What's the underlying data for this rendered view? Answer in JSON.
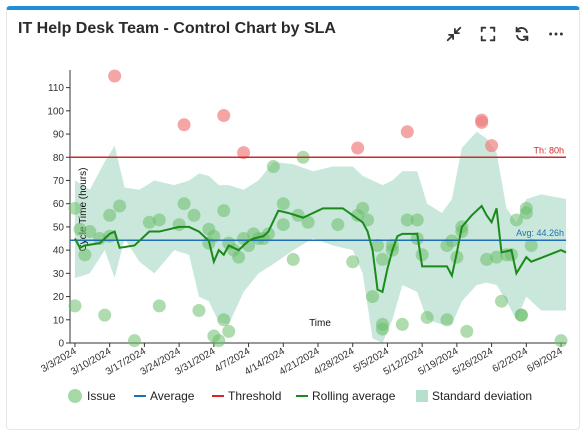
{
  "header": {
    "title": "IT Help Desk Team - Control Chart by SLA",
    "icons": [
      "collapse-icon",
      "fullscreen-icon",
      "refresh-icon",
      "more-icon"
    ]
  },
  "colors": {
    "accent": "#1f8fd6",
    "issue": "#6cbf6c",
    "issue_high": "#f08080",
    "average": "#1f6fb5",
    "threshold": "#d62728",
    "rolling": "#1a8a1a",
    "band": "#b7dfce"
  },
  "chart_data": {
    "type": "scatter",
    "xlabel": "Time",
    "ylabel": "Cycle Time (hours)",
    "ylim": [
      0,
      115
    ],
    "yticks": [
      0,
      10,
      20,
      30,
      40,
      50,
      60,
      70,
      80,
      90,
      100,
      110
    ],
    "xlim": [
      "2024-03-02",
      "2024-06-10"
    ],
    "xticks": [
      "3/3/2024",
      "3/10/2024",
      "3/17/2024",
      "3/24/2024",
      "3/31/2024",
      "4/7/2024",
      "4/14/2024",
      "4/21/2024",
      "4/28/2024",
      "5/5/2024",
      "5/12/2024",
      "5/19/2024",
      "5/26/2024",
      "6/2/2024",
      "6/9/2024"
    ],
    "average": {
      "label": "Avg: 44.26h",
      "value": 44.26
    },
    "threshold": {
      "label": "Th: 80h",
      "value": 80
    },
    "issues": [
      [
        "2024-03-03",
        16
      ],
      [
        "2024-03-03",
        58
      ],
      [
        "2024-03-04",
        49
      ],
      [
        "2024-03-05",
        38
      ],
      [
        "2024-03-06",
        48
      ],
      [
        "2024-03-08",
        45
      ],
      [
        "2024-03-09",
        12
      ],
      [
        "2024-03-10",
        46
      ],
      [
        "2024-03-10",
        55
      ],
      [
        "2024-03-11",
        115
      ],
      [
        "2024-03-12",
        59
      ],
      [
        "2024-03-15",
        1
      ],
      [
        "2024-03-18",
        52
      ],
      [
        "2024-03-20",
        16
      ],
      [
        "2024-03-20",
        53
      ],
      [
        "2024-03-24",
        51
      ],
      [
        "2024-03-25",
        94
      ],
      [
        "2024-03-25",
        60
      ],
      [
        "2024-03-27",
        55
      ],
      [
        "2024-03-28",
        14
      ],
      [
        "2024-03-30",
        49
      ],
      [
        "2024-03-30",
        43
      ],
      [
        "2024-03-31",
        3
      ],
      [
        "2024-03-31",
        46
      ],
      [
        "2024-04-01",
        1
      ],
      [
        "2024-04-02",
        98
      ],
      [
        "2024-04-02",
        57
      ],
      [
        "2024-04-02",
        10
      ],
      [
        "2024-04-03",
        5
      ],
      [
        "2024-04-03",
        43
      ],
      [
        "2024-04-04",
        40
      ],
      [
        "2024-04-05",
        37
      ],
      [
        "2024-04-06",
        82
      ],
      [
        "2024-04-06",
        45
      ],
      [
        "2024-04-07",
        42
      ],
      [
        "2024-04-08",
        47
      ],
      [
        "2024-04-09",
        45
      ],
      [
        "2024-04-10",
        45
      ],
      [
        "2024-04-11",
        47
      ],
      [
        "2024-04-12",
        76
      ],
      [
        "2024-04-14",
        60
      ],
      [
        "2024-04-14",
        51
      ],
      [
        "2024-04-16",
        36
      ],
      [
        "2024-04-17",
        55
      ],
      [
        "2024-04-18",
        80
      ],
      [
        "2024-04-19",
        52
      ],
      [
        "2024-04-25",
        51
      ],
      [
        "2024-04-28",
        35
      ],
      [
        "2024-04-29",
        84
      ],
      [
        "2024-04-29",
        55
      ],
      [
        "2024-04-30",
        58
      ],
      [
        "2024-05-01",
        53
      ],
      [
        "2024-05-02",
        20
      ],
      [
        "2024-05-03",
        42
      ],
      [
        "2024-05-04",
        8
      ],
      [
        "2024-05-04",
        6
      ],
      [
        "2024-05-04",
        36
      ],
      [
        "2024-05-06",
        42
      ],
      [
        "2024-05-06",
        40
      ],
      [
        "2024-05-08",
        8
      ],
      [
        "2024-05-09",
        91
      ],
      [
        "2024-05-09",
        53
      ],
      [
        "2024-05-11",
        45
      ],
      [
        "2024-05-11",
        53
      ],
      [
        "2024-05-12",
        38
      ],
      [
        "2024-05-13",
        11
      ],
      [
        "2024-05-17",
        42
      ],
      [
        "2024-05-17",
        10
      ],
      [
        "2024-05-18",
        44
      ],
      [
        "2024-05-19",
        37
      ],
      [
        "2024-05-20",
        48
      ],
      [
        "2024-05-20",
        50
      ],
      [
        "2024-05-21",
        5
      ],
      [
        "2024-05-24",
        96
      ],
      [
        "2024-05-24",
        95
      ],
      [
        "2024-05-25",
        36
      ],
      [
        "2024-05-26",
        85
      ],
      [
        "2024-05-27",
        37
      ],
      [
        "2024-05-28",
        18
      ],
      [
        "2024-05-29",
        38
      ],
      [
        "2024-05-30",
        38
      ],
      [
        "2024-05-31",
        53
      ],
      [
        "2024-06-01",
        12
      ],
      [
        "2024-06-01",
        12
      ],
      [
        "2024-06-02",
        58
      ],
      [
        "2024-06-02",
        56
      ],
      [
        "2024-06-03",
        42
      ],
      [
        "2024-06-09",
        1
      ]
    ],
    "rolling_average": [
      [
        "2024-03-03",
        45
      ],
      [
        "2024-03-04",
        41
      ],
      [
        "2024-03-05",
        42
      ],
      [
        "2024-03-08",
        43
      ],
      [
        "2024-03-10",
        47
      ],
      [
        "2024-03-11",
        48
      ],
      [
        "2024-03-12",
        41
      ],
      [
        "2024-03-15",
        42
      ],
      [
        "2024-03-18",
        48
      ],
      [
        "2024-03-20",
        48
      ],
      [
        "2024-03-24",
        50
      ],
      [
        "2024-03-26",
        50
      ],
      [
        "2024-03-28",
        48
      ],
      [
        "2024-03-30",
        44
      ],
      [
        "2024-03-31",
        35
      ],
      [
        "2024-04-01",
        40
      ],
      [
        "2024-04-02",
        38
      ],
      [
        "2024-04-03",
        42
      ],
      [
        "2024-04-05",
        40
      ],
      [
        "2024-04-07",
        44
      ],
      [
        "2024-04-08",
        45
      ],
      [
        "2024-04-10",
        46
      ],
      [
        "2024-04-11",
        48
      ],
      [
        "2024-04-13",
        57
      ],
      [
        "2024-04-15",
        56
      ],
      [
        "2024-04-18",
        54
      ],
      [
        "2024-04-22",
        58
      ],
      [
        "2024-04-26",
        58
      ],
      [
        "2024-04-28",
        55
      ],
      [
        "2024-04-30",
        52
      ],
      [
        "2024-05-01",
        48
      ],
      [
        "2024-05-02",
        40
      ],
      [
        "2024-05-03",
        23
      ],
      [
        "2024-05-04",
        22
      ],
      [
        "2024-05-05",
        32
      ],
      [
        "2024-05-06",
        40
      ],
      [
        "2024-05-07",
        46
      ],
      [
        "2024-05-08",
        47
      ],
      [
        "2024-05-11",
        47
      ],
      [
        "2024-05-12",
        33
      ],
      [
        "2024-05-15",
        33
      ],
      [
        "2024-05-17",
        33
      ],
      [
        "2024-05-18",
        29
      ],
      [
        "2024-05-19",
        39
      ],
      [
        "2024-05-20",
        50
      ],
      [
        "2024-05-22",
        55
      ],
      [
        "2024-05-24",
        59
      ],
      [
        "2024-05-25",
        55
      ],
      [
        "2024-05-26",
        52
      ],
      [
        "2024-05-27",
        58
      ],
      [
        "2024-05-28",
        39
      ],
      [
        "2024-05-30",
        40
      ],
      [
        "2024-05-31",
        30
      ],
      [
        "2024-06-02",
        37
      ],
      [
        "2024-06-03",
        35
      ],
      [
        "2024-06-09",
        40
      ],
      [
        "2024-06-10",
        39
      ]
    ],
    "std_band": [
      [
        "2024-03-03",
        28,
        70
      ],
      [
        "2024-03-06",
        30,
        66
      ],
      [
        "2024-03-09",
        40,
        78
      ],
      [
        "2024-03-11",
        28,
        85
      ],
      [
        "2024-03-13",
        45,
        67
      ],
      [
        "2024-03-16",
        35,
        66
      ],
      [
        "2024-03-19",
        30,
        70
      ],
      [
        "2024-03-23",
        40,
        68
      ],
      [
        "2024-03-26",
        38,
        70
      ],
      [
        "2024-03-28",
        20,
        73
      ],
      [
        "2024-03-30",
        18,
        72
      ],
      [
        "2024-04-01",
        9,
        68
      ],
      [
        "2024-04-03",
        8,
        68
      ],
      [
        "2024-04-06",
        22,
        66
      ],
      [
        "2024-04-09",
        30,
        70
      ],
      [
        "2024-04-12",
        34,
        78
      ],
      [
        "2024-04-16",
        40,
        77
      ],
      [
        "2024-04-20",
        45,
        74
      ],
      [
        "2024-04-24",
        42,
        76
      ],
      [
        "2024-04-28",
        40,
        76
      ],
      [
        "2024-04-30",
        30,
        72
      ],
      [
        "2024-05-02",
        2,
        70
      ],
      [
        "2024-05-04",
        0,
        68
      ],
      [
        "2024-05-06",
        10,
        70
      ],
      [
        "2024-05-08",
        25,
        74
      ],
      [
        "2024-05-11",
        22,
        74
      ],
      [
        "2024-05-13",
        10,
        60
      ],
      [
        "2024-05-16",
        8,
        56
      ],
      [
        "2024-05-18",
        8,
        62
      ],
      [
        "2024-05-20",
        18,
        84
      ],
      [
        "2024-05-23",
        25,
        91
      ],
      [
        "2024-05-25",
        26,
        88
      ],
      [
        "2024-05-27",
        25,
        82
      ],
      [
        "2024-05-29",
        18,
        58
      ],
      [
        "2024-05-31",
        10,
        52
      ],
      [
        "2024-06-02",
        20,
        62
      ],
      [
        "2024-06-05",
        14,
        64
      ],
      [
        "2024-06-10",
        14,
        62
      ]
    ],
    "legend": {
      "position": "bottom",
      "items": [
        "Issue",
        "Average",
        "Threshold",
        "Rolling average",
        "Standard deviation"
      ]
    },
    "grid": false
  }
}
